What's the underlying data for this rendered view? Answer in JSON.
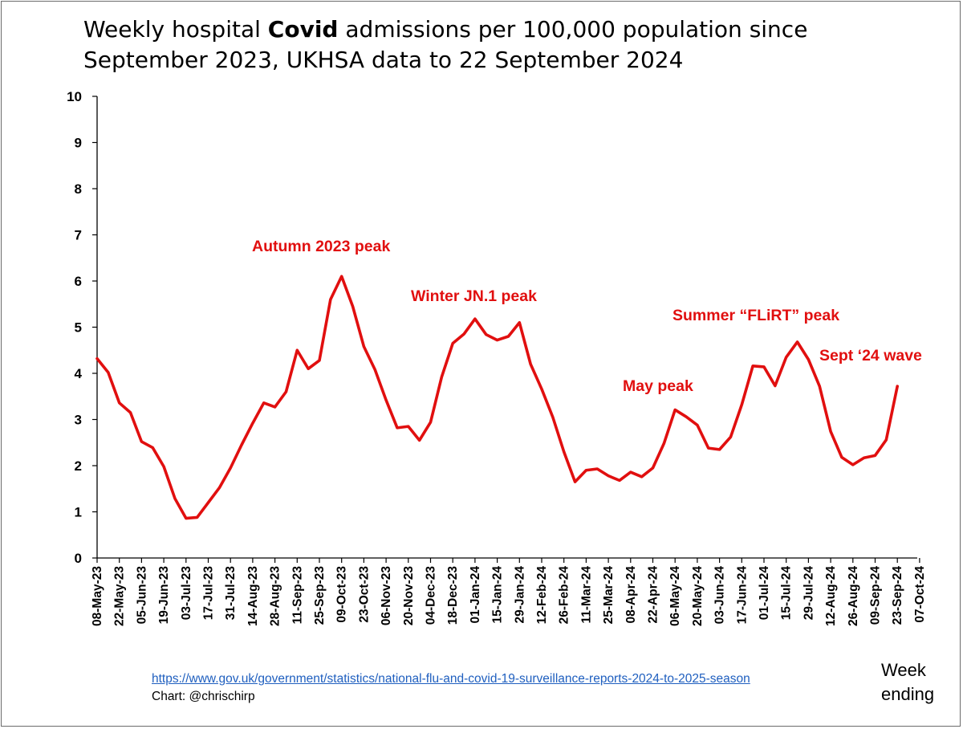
{
  "title": {
    "part1": "Weekly hospital ",
    "bold": "Covid",
    "part2": " admissions per 100,000 population since September 2023, UKHSA data to 22 September 2024"
  },
  "footer": {
    "source_url": "https://www.gov.uk/government/statistics/national-flu-and-covid-19-surveillance-reports-2024-to-2025-season",
    "credit": "Chart: @chrischirp"
  },
  "colors": {
    "line": "#e10f0f",
    "annotation": "#e10f0f",
    "axis": "#000000"
  },
  "chart_data": {
    "type": "line",
    "title": "Weekly hospital Covid admissions per 100,000 population since September 2023, UKHSA data to 22 September 2024",
    "xlabel": "Week ending",
    "ylabel": "",
    "ylim": [
      0,
      10
    ],
    "yticks": [
      0,
      1,
      2,
      3,
      4,
      5,
      6,
      7,
      8,
      9,
      10
    ],
    "grid": false,
    "x_tick_labels": [
      "08-May-23",
      "22-May-23",
      "05-Jun-23",
      "19-Jun-23",
      "03-Jul-23",
      "17-Jul-23",
      "31-Jul-23",
      "14-Aug-23",
      "28-Aug-23",
      "11-Sep-23",
      "25-Sep-23",
      "09-Oct-23",
      "23-Oct-23",
      "06-Nov-23",
      "20-Nov-23",
      "04-Dec-23",
      "18-Dec-23",
      "01-Jan-24",
      "15-Jan-24",
      "29-Jan-24",
      "12-Feb-24",
      "26-Feb-24",
      "11-Mar-24",
      "25-Mar-24",
      "08-Apr-24",
      "22-Apr-24",
      "06-May-24",
      "20-May-24",
      "03-Jun-24",
      "17-Jun-24",
      "01-Jul-24",
      "15-Jul-24",
      "29-Jul-24",
      "12-Aug-24",
      "26-Aug-24",
      "09-Sep-24",
      "23-Sep-24",
      "07-Oct-24"
    ],
    "series": [
      {
        "values": [
          4.32,
          4.02,
          3.36,
          3.15,
          2.52,
          2.39,
          1.98,
          1.29,
          0.86,
          0.88,
          1.2,
          1.52,
          1.95,
          2.45,
          2.92,
          3.36,
          3.27,
          3.6,
          4.5,
          4.1,
          4.28,
          5.6,
          6.1,
          5.45,
          4.58,
          4.08,
          3.42,
          2.82,
          2.85,
          2.55,
          2.94,
          3.92,
          4.65,
          4.85,
          5.18,
          4.84,
          4.72,
          4.8,
          5.1,
          4.2,
          3.66,
          3.05,
          2.3,
          1.65,
          1.9,
          1.93,
          1.78,
          1.68,
          1.86,
          1.76,
          1.95,
          2.48,
          3.21,
          3.06,
          2.88,
          2.38,
          2.35,
          2.62,
          3.32,
          4.16,
          4.14,
          3.73,
          4.35,
          4.68,
          4.3,
          3.72,
          2.74,
          2.18,
          2.02,
          2.17,
          2.22,
          2.56,
          3.72
        ]
      }
    ],
    "annotations": [
      {
        "text": "Autumn 2023 peak"
      },
      {
        "text": "Winter JN.1 peak"
      },
      {
        "text": "May peak"
      },
      {
        "text": "Summer “FLiRT” peak"
      },
      {
        "text": "Sept ‘24 wave"
      }
    ]
  }
}
